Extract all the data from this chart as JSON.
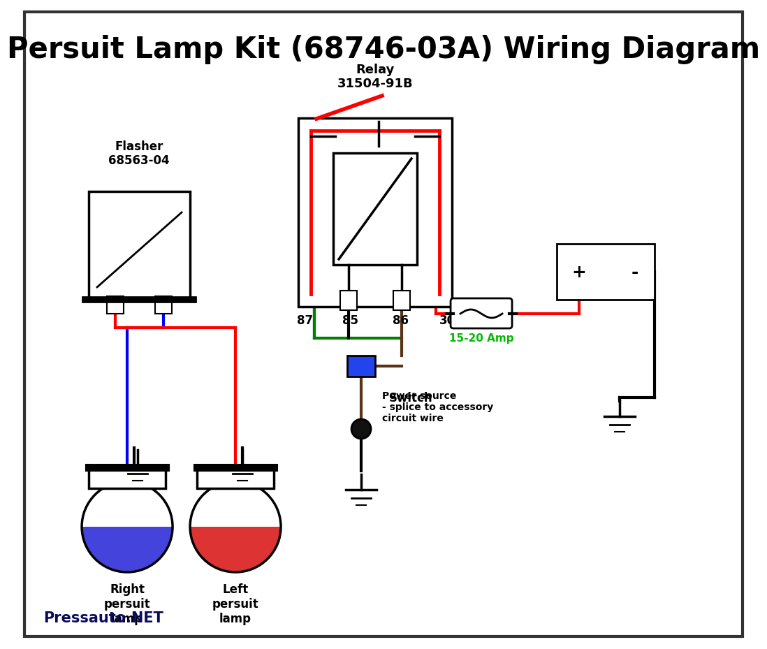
{
  "title": "Persuit Lamp Kit (68746-03A) Wiring Diagram",
  "title_color": "#000000",
  "title_fontsize": 30,
  "watermark": "Pressauto.NET",
  "watermark_color": "#0a0a5e",
  "bg_color": "#ffffff",
  "border_color": "#000000",
  "relay_label": "Relay\n31504-91B",
  "flasher_label": "Flasher\n68563-04",
  "fuse_label": "15-20 Amp",
  "switch_label": "Switch",
  "power_label": "Power source\n- splice to accessory\ncircuit wire",
  "right_lamp_label": "Right\npersuit\nlamp",
  "left_lamp_label": "Left\npersuit\nlamp"
}
